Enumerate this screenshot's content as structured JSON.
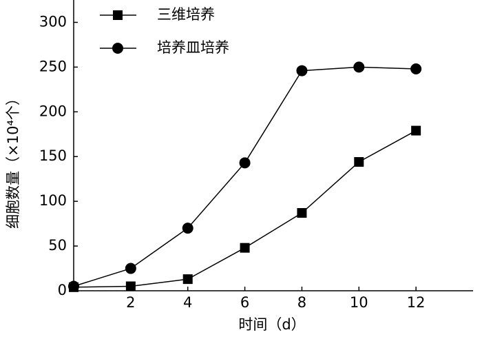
{
  "chart_data": {
    "type": "line",
    "x_label": "时间（d）",
    "y_label": "细胞数量（×10⁴个）",
    "x": [
      0,
      2,
      4,
      6,
      8,
      10,
      12
    ],
    "series": [
      {
        "name": "三维培养",
        "color": "#000000",
        "marker": "square",
        "values": [
          4,
          5,
          13,
          48,
          87,
          144,
          179
        ]
      },
      {
        "name": "培养皿培养",
        "color": "#000000",
        "marker": "circle",
        "values": [
          5,
          25,
          70,
          143,
          246,
          250,
          248
        ]
      }
    ],
    "xlim": [
      0,
      14
    ],
    "xticks": [
      2,
      4,
      6,
      8,
      10,
      12
    ],
    "ylim": [
      0,
      325
    ],
    "yticks": [
      0,
      50,
      100,
      150,
      200,
      250,
      300
    ],
    "legend": "upper-left"
  }
}
